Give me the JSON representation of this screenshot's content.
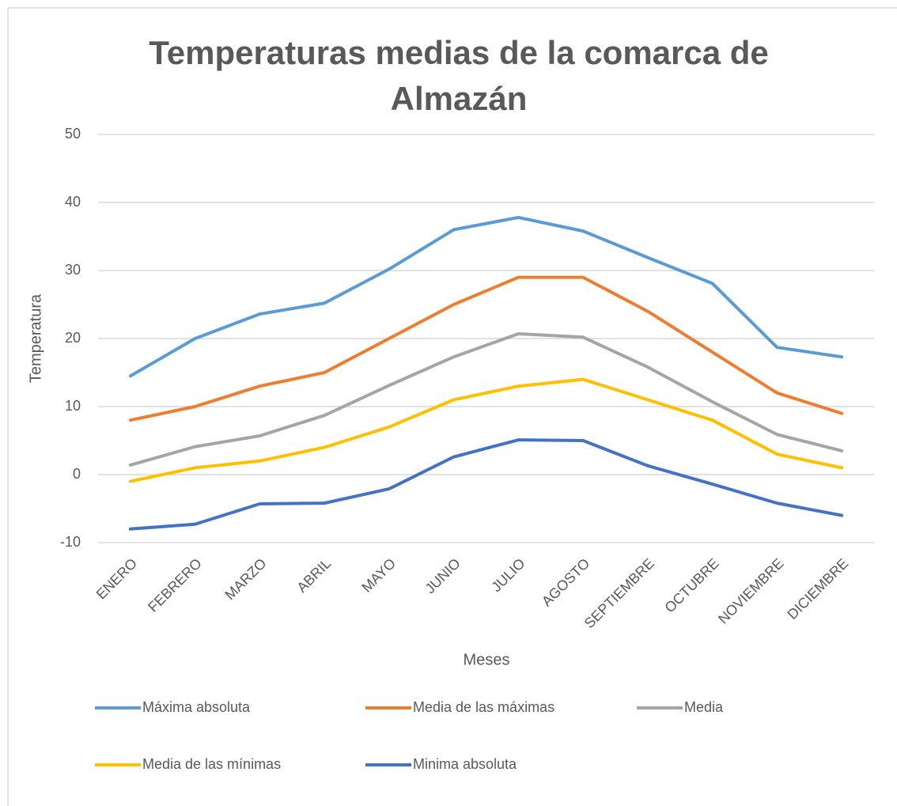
{
  "chart_data": {
    "type": "line",
    "title": "Temperaturas medias de la comarca de Almazán",
    "x_label": "Meses",
    "y_label": "Temperatura",
    "categories": [
      "ENERO",
      "FEBRERO",
      "MARZO",
      "ABRIL",
      "MAYO",
      "JUNIO",
      "JULIO",
      "AGOSTO",
      "SEPTIEMBRE",
      "OCTUBRE",
      "NOVIEMBRE",
      "DICIEMBRE"
    ],
    "series": [
      {
        "name": "Máxima absoluta",
        "color": "#5b9bd5",
        "values": [
          14.5,
          20,
          23.6,
          25.2,
          30.2,
          36,
          37.8,
          35.8,
          31.9,
          28.1,
          18.7,
          17.3
        ]
      },
      {
        "name": "Media de las máximas",
        "color": "#ed7d31",
        "values": [
          8,
          10,
          13,
          15,
          20,
          25,
          29,
          29,
          24,
          18,
          12,
          9
        ]
      },
      {
        "name": "Media",
        "color": "#a5a5a5",
        "values": [
          1.4,
          4.1,
          5.7,
          8.7,
          13.1,
          17.3,
          20.7,
          20.2,
          15.8,
          10.7,
          5.9,
          3.5
        ]
      },
      {
        "name": "Media de las mínimas",
        "color": "#ffc000",
        "values": [
          -1,
          1,
          2,
          4,
          7,
          11,
          13,
          14,
          11,
          8,
          3,
          1
        ]
      },
      {
        "name": "Minima absoluta",
        "color": "#4472c4",
        "values": [
          -8,
          -7.3,
          -4.3,
          -4.2,
          -2.1,
          2.6,
          5.1,
          5,
          1.3,
          -1.4,
          -4.2,
          -6
        ]
      }
    ],
    "ylim": [
      -10,
      50
    ],
    "yticks": [
      -10,
      0,
      10,
      20,
      30,
      40,
      50
    ],
    "grid": true,
    "legend": "bottom"
  }
}
